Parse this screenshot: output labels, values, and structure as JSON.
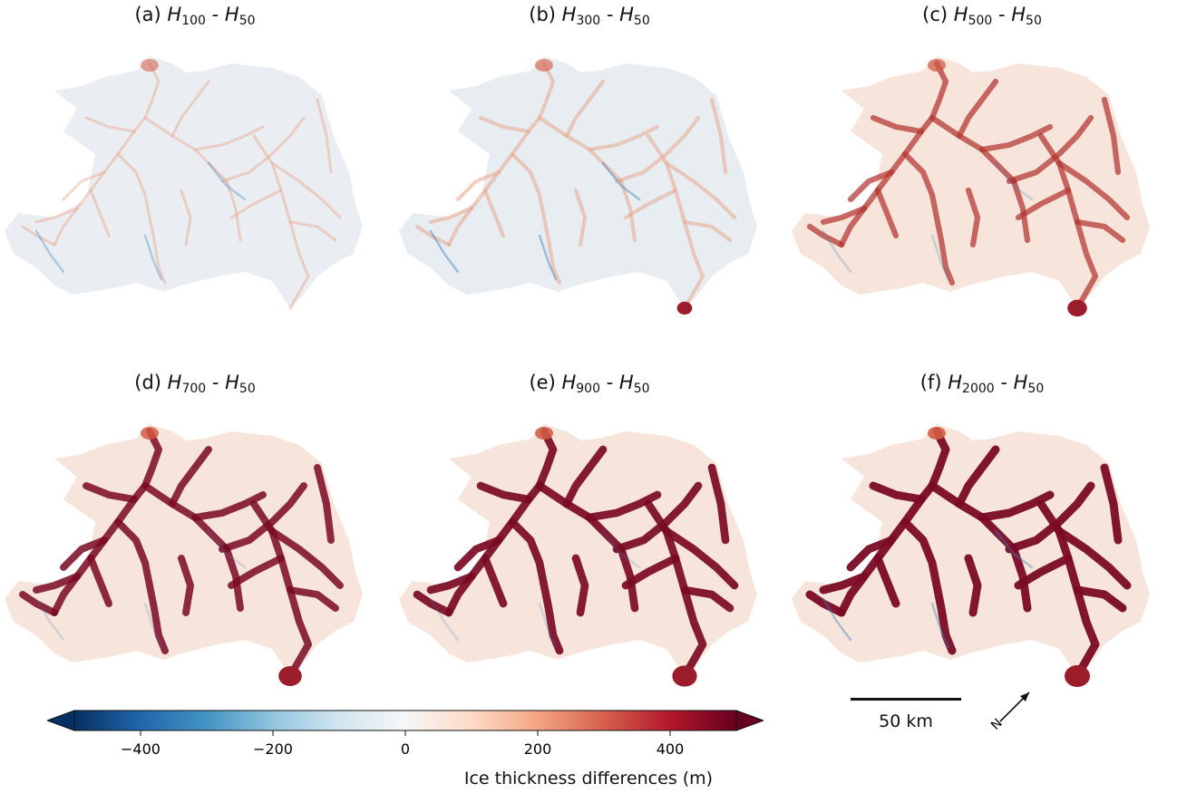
{
  "panels": [
    {
      "letter": "(a)",
      "sub_a": "100",
      "sub_b": "50",
      "intensity": 0.15,
      "blue": 0.35
    },
    {
      "letter": "(b)",
      "sub_a": "300",
      "sub_b": "50",
      "intensity": 0.3,
      "blue": 0.45
    },
    {
      "letter": "(c)",
      "sub_a": "500",
      "sub_b": "50",
      "intensity": 0.6,
      "blue": 0.25
    },
    {
      "letter": "(d)",
      "sub_a": "700",
      "sub_b": "50",
      "intensity": 0.85,
      "blue": 0.2
    },
    {
      "letter": "(e)",
      "sub_a": "900",
      "sub_b": "50",
      "intensity": 0.95,
      "blue": 0.2
    },
    {
      "letter": "(f)",
      "sub_a": "2000",
      "sub_b": "50",
      "intensity": 1.0,
      "blue": 0.4
    }
  ],
  "symbol": "H",
  "colorbar": {
    "label": "Ice thickness differences (m)",
    "min": -500,
    "max": 500,
    "ticks": [
      "−400",
      "−200",
      "0",
      "200",
      "400"
    ],
    "tick_values": [
      -400,
      -200,
      0,
      200,
      400
    ],
    "colors": [
      "#053061",
      "#2166ac",
      "#4393c3",
      "#92c5de",
      "#d1e5f0",
      "#f7f7f7",
      "#fddbc7",
      "#f4a582",
      "#d6604d",
      "#b2182b",
      "#67001f"
    ],
    "extend": "both"
  },
  "scale": {
    "label": "50 km"
  },
  "north_arrow": {
    "label": "N"
  }
}
